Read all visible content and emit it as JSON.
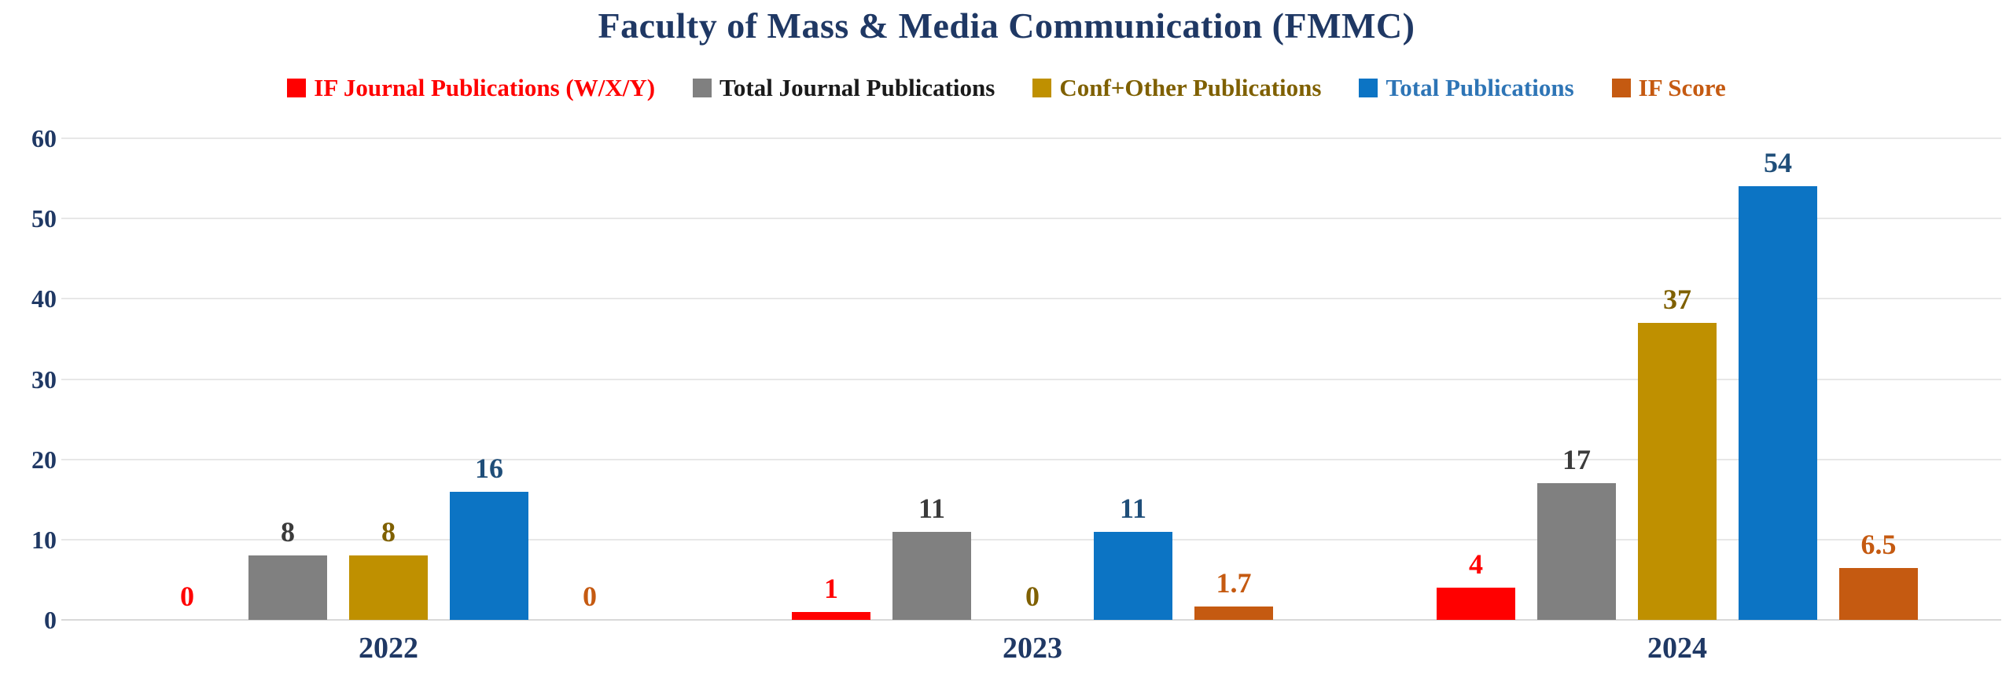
{
  "chart_data": {
    "type": "bar",
    "title": "Faculty of Mass & Media Communication (FMMC)",
    "categories": [
      "2022",
      "2023",
      "2024"
    ],
    "series": [
      {
        "name": "IF Journal Publications (W/X/Y)",
        "values": [
          0,
          1,
          4
        ],
        "bar_color": "#FF0000",
        "label_color": "#FF0000",
        "legend_text_color": "#FF0000"
      },
      {
        "name": "Total Journal Publications",
        "values": [
          8,
          11,
          17
        ],
        "bar_color": "#808080",
        "label_color": "#3B3B3B",
        "legend_text_color": "#1A1A1A"
      },
      {
        "name": "Conf+Other Publications",
        "values": [
          8,
          0,
          37
        ],
        "bar_color": "#BF9000",
        "label_color": "#7F6000",
        "legend_text_color": "#7F6000"
      },
      {
        "name": "Total Publications",
        "values": [
          16,
          11,
          54
        ],
        "bar_color": "#0C74C4",
        "label_color": "#1F4E79",
        "legend_text_color": "#2E75B6"
      },
      {
        "name": "IF Score",
        "values": [
          0,
          1.7,
          6.5
        ],
        "bar_color": "#C55A11",
        "label_color": "#C55A11",
        "legend_text_color": "#C55A11"
      }
    ],
    "ylim": [
      0,
      60
    ],
    "y_ticks": [
      0,
      10,
      20,
      30,
      40,
      50,
      60
    ],
    "grid": true,
    "legend_position": "top",
    "text_color": "#1F3864",
    "gridline_color": "#E7E7E7",
    "axis_line_color": "#D9D9D9",
    "background_color": "#FFFFFF"
  }
}
